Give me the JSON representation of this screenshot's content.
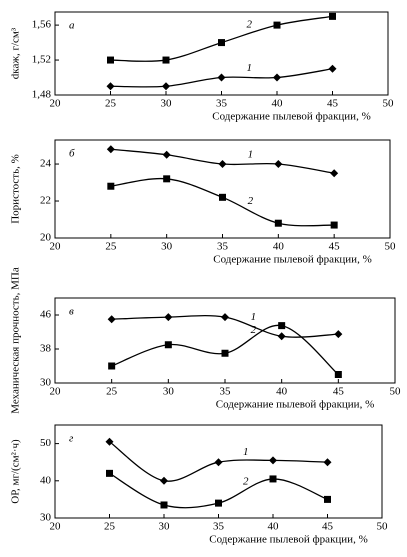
{
  "chart_data": [
    {
      "type": "line",
      "panel_label": "а",
      "ylabel": "dкаж, г/см³",
      "xlabel": "Содержание пылевой фракции, %",
      "x": [
        25,
        30,
        35,
        40,
        45
      ],
      "xlim": [
        20,
        50
      ],
      "xticks": [
        20,
        25,
        30,
        35,
        40,
        45,
        50
      ],
      "ylim": [
        1.48,
        1.575
      ],
      "yticks": [
        {
          "value": 1.48,
          "label": "1,48"
        },
        {
          "value": 1.52,
          "label": "1,52"
        },
        {
          "value": 1.56,
          "label": "1,56"
        }
      ],
      "series": [
        {
          "name": "1",
          "color": "#000000",
          "marker": "diamond",
          "values": [
            1.49,
            1.49,
            1.5,
            1.5,
            1.51
          ]
        },
        {
          "name": "2",
          "color": "#000000",
          "marker": "square",
          "values": [
            1.52,
            1.52,
            1.54,
            1.56,
            1.57
          ]
        }
      ]
    },
    {
      "type": "line",
      "panel_label": "б",
      "ylabel": "Пористость, %",
      "xlabel": "Содержание пылевой фракции, %",
      "x": [
        25,
        30,
        35,
        40,
        45
      ],
      "xlim": [
        20,
        50
      ],
      "xticks": [
        20,
        25,
        30,
        35,
        40,
        45,
        50
      ],
      "ylim": [
        20,
        25.3
      ],
      "yticks": [
        20,
        22,
        24
      ],
      "series": [
        {
          "name": "1",
          "color": "#000000",
          "marker": "diamond",
          "values": [
            24.8,
            24.5,
            24.0,
            24.0,
            23.5
          ]
        },
        {
          "name": "2",
          "color": "#000000",
          "marker": "square",
          "values": [
            22.8,
            23.2,
            22.2,
            20.8,
            20.7
          ]
        }
      ]
    },
    {
      "type": "line",
      "panel_label": "в",
      "ylabel": "Механическая прочность, МПа",
      "xlabel": "Содержание пылевой фракции, %",
      "x": [
        25,
        30,
        35,
        40,
        45
      ],
      "xlim": [
        20,
        50
      ],
      "xticks": [
        20,
        25,
        30,
        35,
        40,
        45,
        50
      ],
      "ylim": [
        30,
        50
      ],
      "yticks": [
        30,
        38,
        46
      ],
      "series": [
        {
          "name": "1",
          "color": "#000000",
          "marker": "diamond",
          "values": [
            45,
            45.5,
            45.5,
            41,
            41.5
          ]
        },
        {
          "name": "2",
          "color": "#000000",
          "marker": "square",
          "values": [
            34,
            39,
            37,
            43.5,
            32
          ]
        }
      ]
    },
    {
      "type": "line",
      "panel_label": "г",
      "ylabel": "ОР, мг/(см²·ч)",
      "xlabel": "Содержание пылевой фракции, %",
      "x": [
        25,
        30,
        35,
        40,
        45
      ],
      "xlim": [
        20,
        50
      ],
      "xticks": [
        20,
        25,
        30,
        35,
        40,
        45,
        50
      ],
      "ylim": [
        30,
        55
      ],
      "yticks": [
        30,
        40,
        50
      ],
      "series": [
        {
          "name": "1",
          "color": "#000000",
          "marker": "diamond",
          "values": [
            50.5,
            40,
            45,
            45.5,
            45
          ]
        },
        {
          "name": "2",
          "color": "#000000",
          "marker": "square",
          "values": [
            42,
            33.5,
            34,
            40.5,
            35
          ]
        }
      ]
    }
  ]
}
